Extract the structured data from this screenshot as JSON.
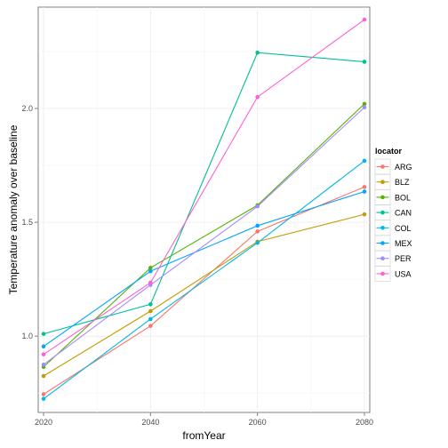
{
  "chart_data": {
    "type": "line",
    "xlabel": "fromYear",
    "ylabel": "Temperature anomaly over baseline",
    "x": [
      2020,
      2040,
      2060,
      2080
    ],
    "xlim": [
      2019,
      2081
    ],
    "ylim": [
      0.665,
      2.445
    ],
    "x_ticks": [
      2020,
      2040,
      2060,
      2080
    ],
    "y_ticks": [
      1.0,
      1.5,
      2.0
    ],
    "y_tick_labels": [
      "1.0",
      "1.5",
      "2.0"
    ],
    "grid": true,
    "legend": {
      "title": "locator",
      "placement": "right"
    },
    "series": [
      {
        "name": "ARG",
        "color": "#F8766D",
        "values": [
          0.745,
          1.045,
          1.46,
          1.655
        ]
      },
      {
        "name": "BLZ",
        "color": "#C49A00",
        "values": [
          0.825,
          1.11,
          1.415,
          1.535
        ]
      },
      {
        "name": "BOL",
        "color": "#53B400",
        "values": [
          0.865,
          1.3,
          1.575,
          2.02
        ]
      },
      {
        "name": "CAN",
        "color": "#00C094",
        "values": [
          1.01,
          1.14,
          2.245,
          2.205
        ]
      },
      {
        "name": "COL",
        "color": "#00B6EB",
        "values": [
          0.725,
          1.075,
          1.41,
          1.77
        ]
      },
      {
        "name": "MEX",
        "color": "#06A4FF",
        "values": [
          0.955,
          1.285,
          1.485,
          1.635
        ]
      },
      {
        "name": "PER",
        "color": "#A58AFF",
        "values": [
          0.875,
          1.225,
          1.57,
          2.005
        ]
      },
      {
        "name": "USA",
        "color": "#FB61D7",
        "values": [
          0.92,
          1.235,
          2.05,
          2.39
        ]
      }
    ]
  }
}
